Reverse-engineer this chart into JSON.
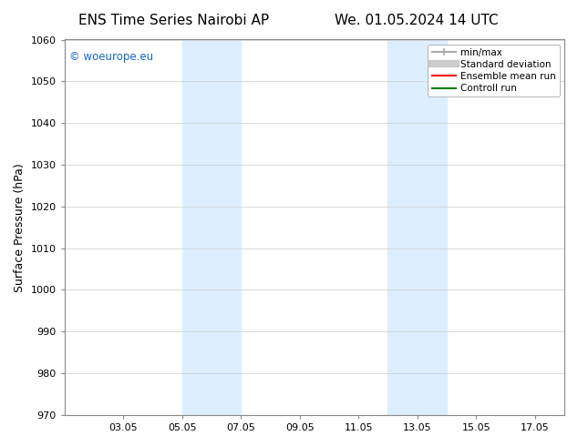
{
  "title_left": "ENS Time Series Nairobi AP",
  "title_right": "We. 01.05.2024 14 UTC",
  "ylabel": "Surface Pressure (hPa)",
  "ylim": [
    970,
    1060
  ],
  "yticks": [
    970,
    980,
    990,
    1000,
    1010,
    1020,
    1030,
    1040,
    1050,
    1060
  ],
  "xlim_start": "2024-05-01",
  "xlim_end": "2024-05-18",
  "xtick_labels": [
    "03.05",
    "05.05",
    "07.05",
    "09.05",
    "11.05",
    "13.05",
    "15.05",
    "17.05"
  ],
  "xtick_positions": [
    2,
    4,
    6,
    8,
    10,
    12,
    14,
    16
  ],
  "shaded_bands": [
    {
      "x_start": 4,
      "x_end": 6
    },
    {
      "x_start": 11,
      "x_end": 13
    }
  ],
  "watermark": "© woeurope.eu",
  "watermark_color": "#1565C0",
  "legend_items": [
    {
      "label": "min/max",
      "color": "#aaaaaa",
      "lw": 1.5,
      "style": "|-|"
    },
    {
      "label": "Standard deviation",
      "color": "#cccccc",
      "lw": 6
    },
    {
      "label": "Ensemble mean run",
      "color": "red",
      "lw": 1.5
    },
    {
      "label": "Controll run",
      "color": "green",
      "lw": 1.5
    }
  ],
  "bg_color": "#ffffff",
  "plot_bg_color": "#ffffff",
  "band_color": "#ddeeff",
  "grid_color": "#cccccc",
  "title_fontsize": 11,
  "tick_fontsize": 8,
  "label_fontsize": 9
}
